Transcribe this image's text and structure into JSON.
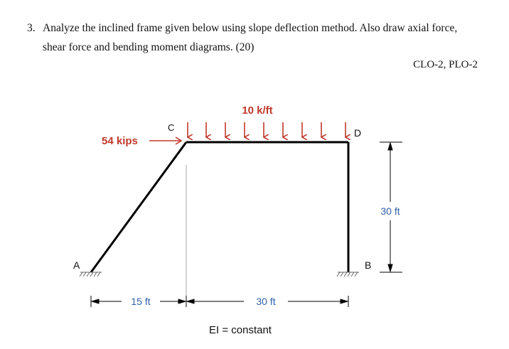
{
  "question": {
    "number": "3.",
    "line1": "Analyze the inclined frame given below using slope deflection method. Also draw axial force,",
    "line2": "shear force and bending moment diagrams. (20)"
  },
  "clo": "CLO-2, PLO-2",
  "diagram": {
    "load_label": "10 k/ft",
    "point_load_label": "54 kips",
    "nodes": {
      "a": "A",
      "b": "B",
      "c": "C",
      "d": "D"
    },
    "dim_horizontal_left": "15 ft",
    "dim_horizontal_right": "30 ft",
    "dim_vertical": "30 ft",
    "ei_note": "EI = constant",
    "colors": {
      "load": "#c0392b",
      "dimension": "#2e5fa8",
      "frame": "#000000"
    }
  }
}
